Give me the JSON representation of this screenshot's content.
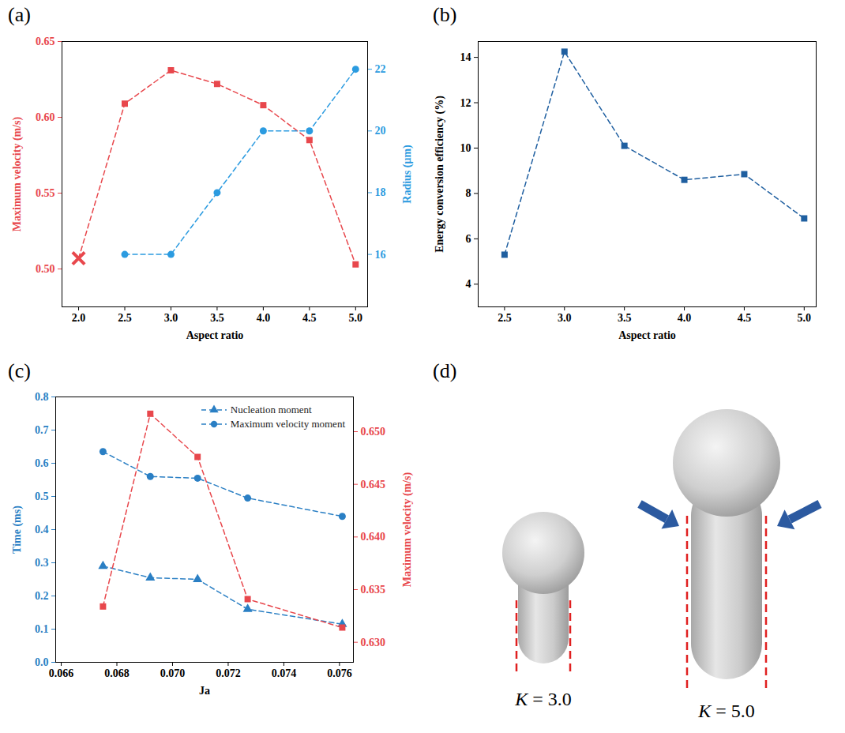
{
  "chart_data": [
    {
      "panel": "(a)",
      "type": "line",
      "x_label": "Aspect ratio",
      "y_label": "Maximum velocity (m/s)",
      "y2_label": "Radius (μm)",
      "xlim": [
        1.82,
        5.13
      ],
      "xticks": [
        {
          "value": 2,
          "label": "2.0"
        },
        2.5,
        {
          "value": 3,
          "label": "3.0"
        },
        3.5,
        {
          "value": 4,
          "label": "4.0"
        },
        4.5,
        {
          "value": 5,
          "label": "5.0"
        }
      ],
      "ylim": [
        0.475,
        0.65
      ],
      "yticks": [
        {
          "value": 0.5,
          "label": "0.50"
        },
        0.55,
        {
          "value": 0.6,
          "label": "0.60"
        },
        0.65
      ],
      "y2lim": [
        14.3,
        22.9
      ],
      "y2ticks": [
        16,
        18,
        20,
        22
      ],
      "grid": false,
      "series": [
        {
          "color": "#e8474c",
          "x": [
            2.0,
            2.5,
            3.0,
            3.5,
            4.0,
            4.5,
            5.0
          ],
          "values": [
            0.507,
            0.609,
            0.631,
            0.622,
            0.608,
            0.585,
            0.503
          ],
          "marker": "square",
          "line_style": "dashed"
        },
        {
          "color": "#e8474c",
          "type": "scatter",
          "x": [
            2.0
          ],
          "values": [
            0.507
          ],
          "marker": "x"
        },
        {
          "color": "#2b9be0",
          "axis": "y2",
          "x": [
            2.5,
            3.0,
            3.5,
            4.0,
            4.5,
            5.0
          ],
          "values": [
            16,
            16,
            18,
            20,
            20,
            22
          ],
          "marker": "circle",
          "line_style": "dashed"
        }
      ]
    },
    {
      "panel": "(b)",
      "type": "line",
      "x_label": "Aspect ratio",
      "y_label": "Energy conversion efficiency (%)",
      "xlim": [
        2.28,
        5.1
      ],
      "xticks": [
        2.5,
        {
          "value": 3,
          "label": "3.0"
        },
        3.5,
        {
          "value": 4,
          "label": "4.0"
        },
        4.5,
        {
          "value": 5,
          "label": "5.0"
        }
      ],
      "ylim": [
        3.0,
        14.7
      ],
      "yticks": [
        4,
        6,
        8,
        10,
        12,
        14
      ],
      "grid": false,
      "x": [
        2.5,
        3.0,
        3.5,
        4.0,
        4.5,
        5.0
      ],
      "series": [
        {
          "color": "#1f5fa0",
          "values": [
            5.3,
            14.25,
            10.1,
            8.6,
            8.85,
            6.9
          ],
          "marker": "square",
          "line_style": "dashed"
        }
      ]
    },
    {
      "panel": "(c)",
      "type": "line",
      "x_label": "Ja",
      "y_label": "Time (ms)",
      "y2_label": "Maximum velocity (m/s)",
      "xlim": [
        0.0658,
        0.0765
      ],
      "xticks": [
        0.066,
        0.068,
        {
          "value": 0.07,
          "label": "0.070"
        },
        0.072,
        0.074,
        0.076
      ],
      "ylim": [
        0,
        0.8
      ],
      "yticks": [
        {
          "value": 0,
          "label": "0.0"
        },
        0.1,
        0.2,
        0.3,
        0.4,
        0.5,
        0.6,
        0.7,
        0.8
      ],
      "y2lim": [
        0.6281,
        0.6533
      ],
      "y2ticks": [
        {
          "value": 0.63,
          "label": "0.630"
        },
        0.635,
        {
          "value": 0.64,
          "label": "0.640"
        },
        0.645,
        {
          "value": 0.65,
          "label": "0.650"
        }
      ],
      "grid": false,
      "legend": "top-right",
      "x": [
        0.0675,
        0.0692,
        0.0709,
        0.0727,
        0.0761
      ],
      "series": [
        {
          "name": "Nucleation moment",
          "color": "#2a7fc4",
          "values": [
            0.29,
            0.255,
            0.25,
            0.16,
            0.115
          ],
          "marker": "triangle",
          "line_style": "dashed"
        },
        {
          "name": "Maximum velocity moment",
          "color": "#2a7fc4",
          "values": [
            0.635,
            0.56,
            0.555,
            0.495,
            0.44
          ],
          "marker": "circle",
          "line_style": "dashed"
        },
        {
          "color": "#e8474c",
          "axis": "y2",
          "values": [
            0.6334,
            0.6517,
            0.6476,
            0.6341,
            0.6314
          ],
          "marker": "square",
          "line_style": "dashed"
        }
      ]
    }
  ],
  "diagram": {
    "panel": "(d)",
    "labels": [
      "K = 3.0",
      "K = 5.0"
    ]
  }
}
